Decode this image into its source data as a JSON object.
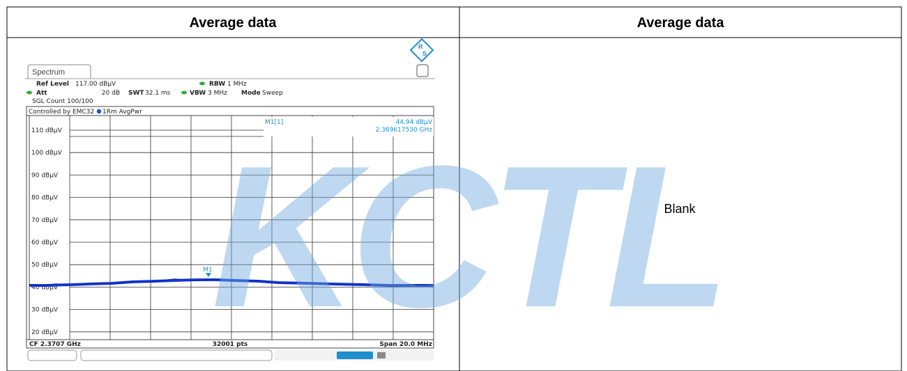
{
  "table": {
    "headers": [
      "Average data",
      "Average data"
    ],
    "right_cell": "Blank"
  },
  "spectrum": {
    "tab": "Spectrum",
    "ref_level_label": "Ref Level",
    "ref_level": "117.00 dBµV",
    "att_label": "Att",
    "att": "20 dB",
    "swt_label": "SWT",
    "swt": "32.1 ms",
    "rbw_label": "RBW",
    "rbw": "1 MHz",
    "vbw_label": "VBW",
    "vbw": "3 MHz",
    "mode_label": "Mode",
    "mode": "Sweep",
    "sgl_count": "SGL Count 100/100",
    "controlled_by": "Controlled by EMC32",
    "trace_label": "1Rm AvgPwr",
    "y_labels": [
      "110 dBµV",
      "100 dBµV",
      "90 dBµV",
      "80 dBµV",
      "70 dBµV",
      "60 dBµV",
      "50 dBµV",
      "40 dBµV",
      "30 dBµV",
      "20 dBµV"
    ],
    "marker": "M1",
    "marker_readout": "M1[1]",
    "marker_level": "44.94 dBµV",
    "marker_freq": "2.369617530 GHz",
    "cf": "CF 2.3707 GHz",
    "points": "32001 pts",
    "span": "Span 20.0 MHz"
  },
  "watermark": "KCTL"
}
